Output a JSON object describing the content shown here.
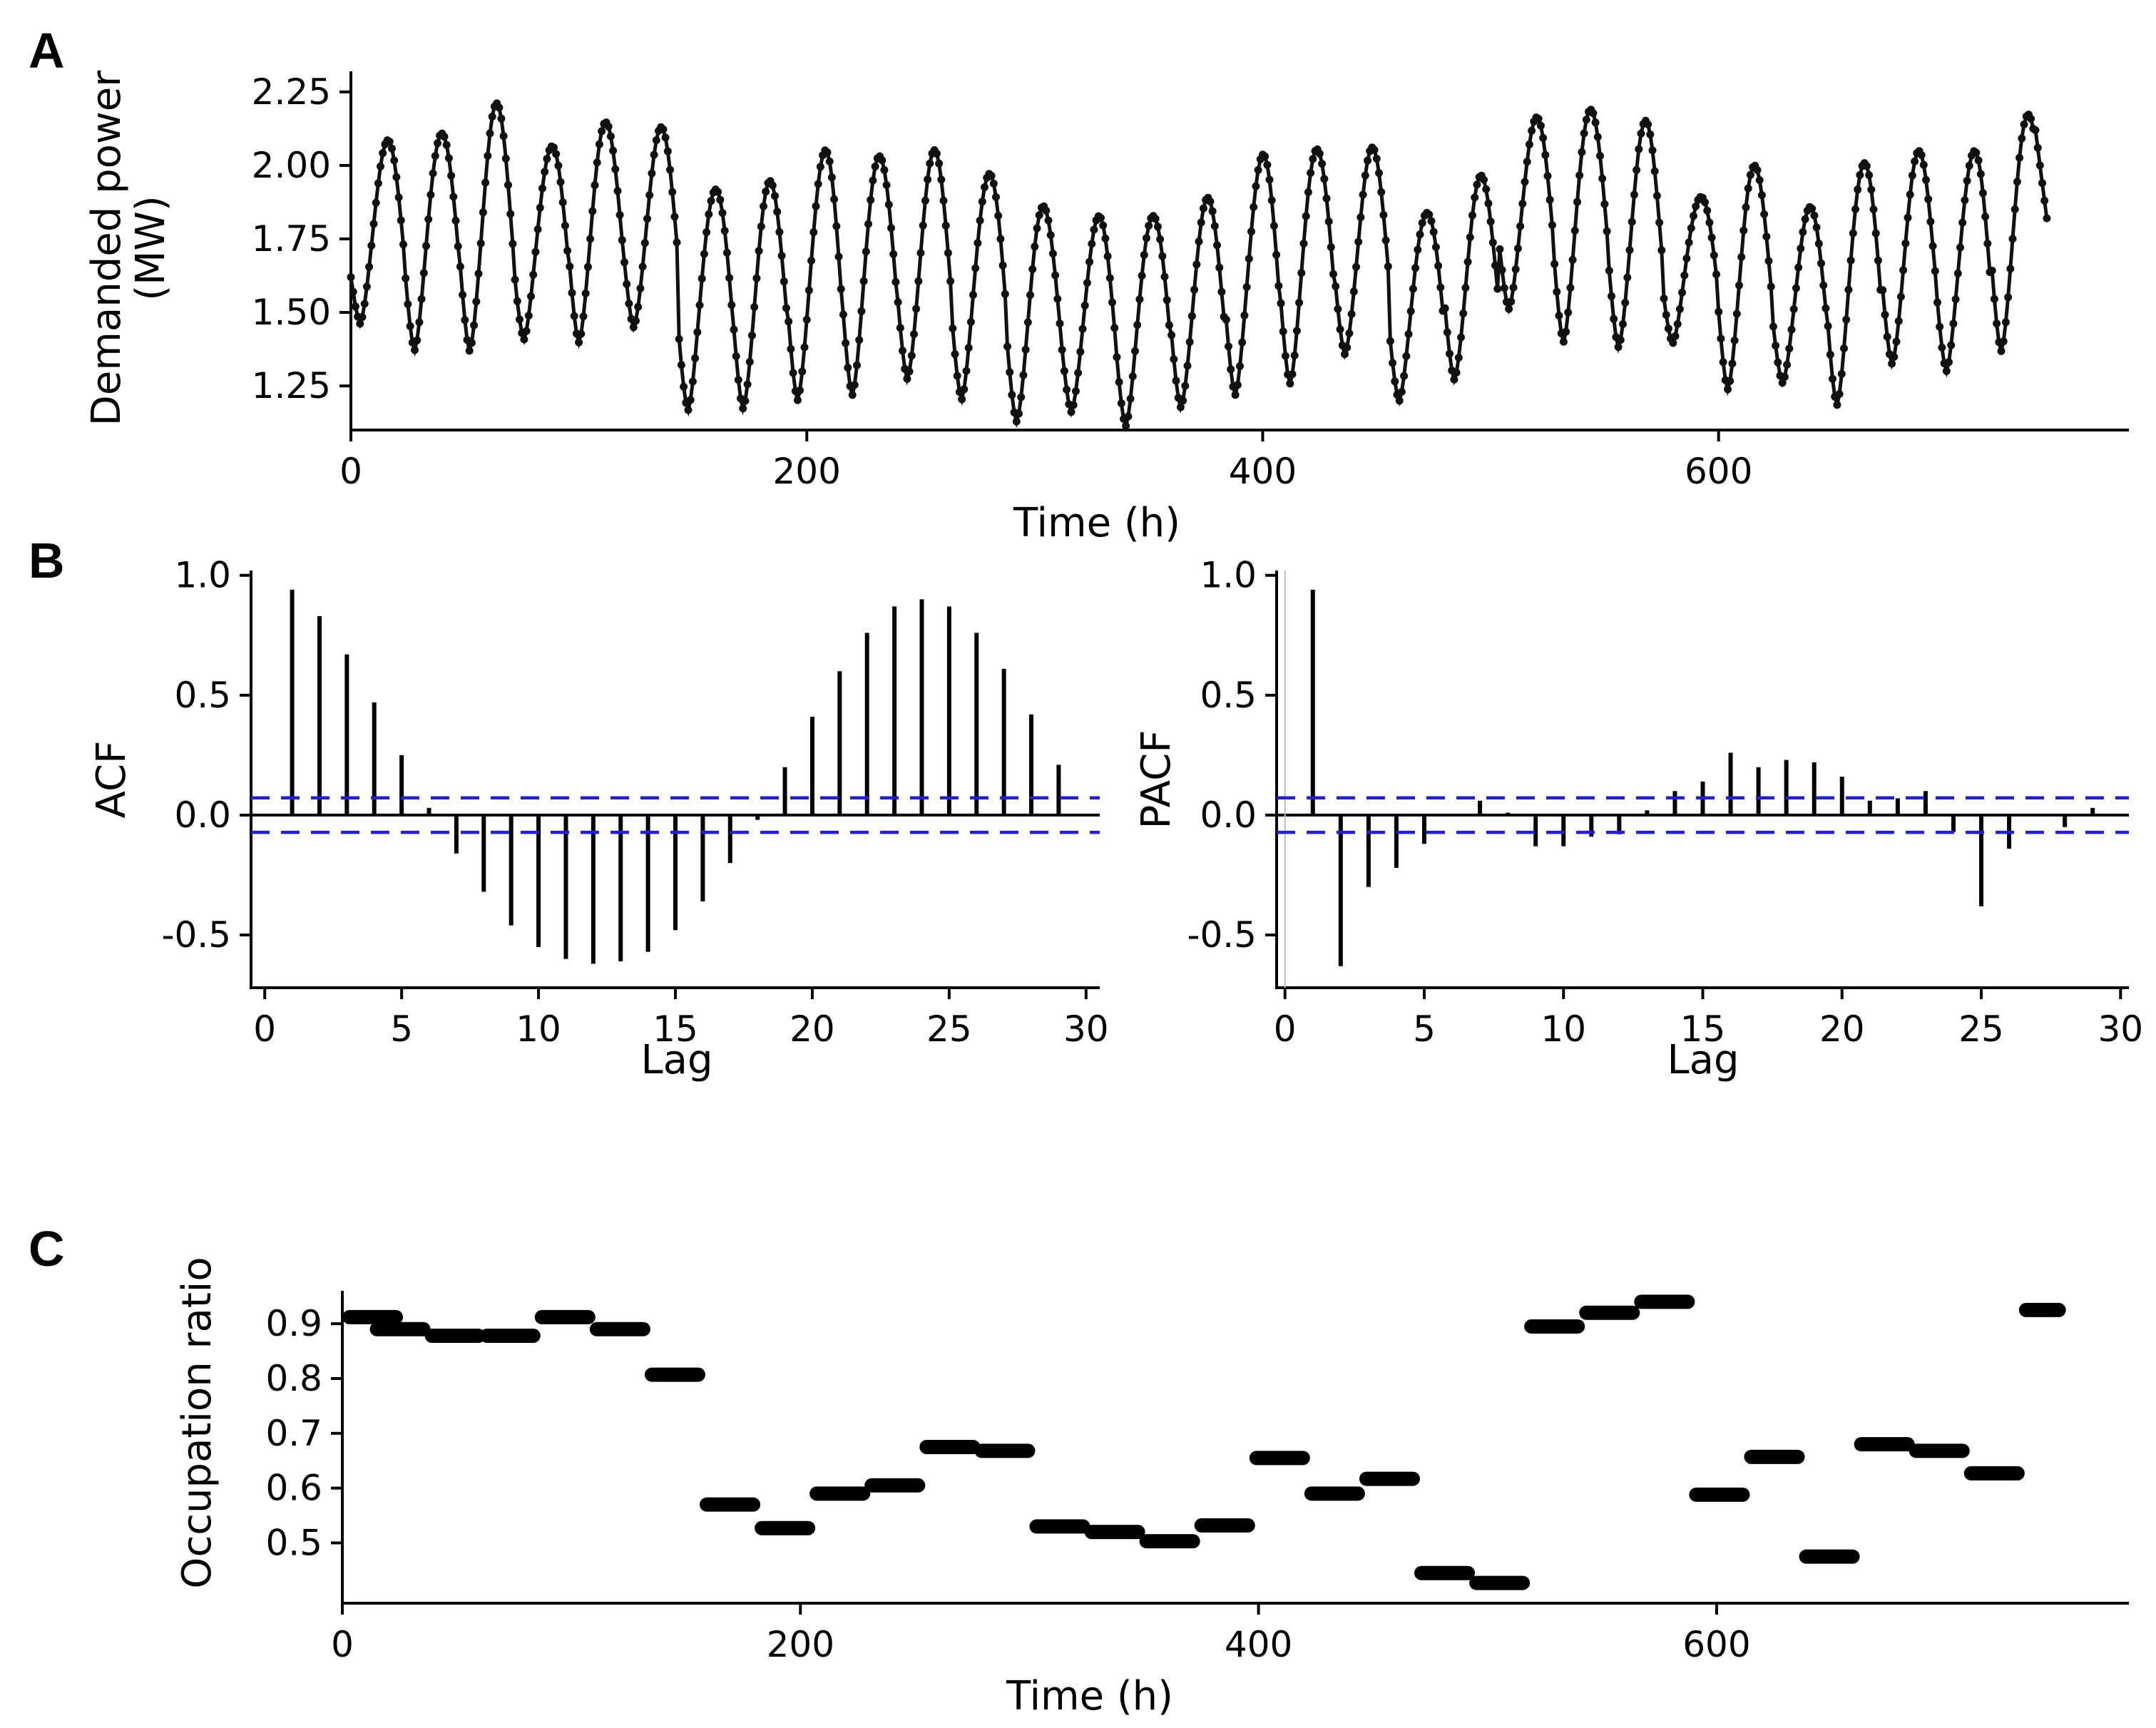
{
  "panels": {
    "a": "A",
    "b": "B",
    "c": "C"
  },
  "chart_data": [
    {
      "id": "A",
      "type": "line",
      "title": "",
      "xlabel": "Time (h)",
      "ylabel_lines": [
        "Demanded power",
        "(MW)"
      ],
      "xlim": [
        0,
        780
      ],
      "ylim": [
        1.1,
        2.32
      ],
      "xticks": [
        0,
        200,
        400,
        600
      ],
      "xtick_labels": [
        "0",
        "200",
        "400",
        "600"
      ],
      "yticks": [
        1.25,
        1.5,
        1.75,
        2.0,
        2.25
      ],
      "ytick_labels": [
        "1.25",
        "1.50",
        "1.75",
        "2.00",
        "2.25"
      ],
      "series_peaks": [
        2.08,
        2.12,
        2.2,
        2.07,
        2.15,
        2.12,
        1.93,
        1.94,
        2.05,
        2.04,
        2.04,
        1.98,
        1.86,
        1.82,
        1.84,
        1.88,
        2.04,
        2.06,
        2.05,
        1.85,
        1.96,
        2.16,
        2.2,
        2.14,
        1.9,
        2.0,
        1.85,
        2.02,
        2.04,
        2.05,
        2.18
      ],
      "series_troughs": [
        1.45,
        1.38,
        1.37,
        1.4,
        1.41,
        1.44,
        1.17,
        1.18,
        1.19,
        1.23,
        1.27,
        1.2,
        1.14,
        1.15,
        1.12,
        1.18,
        1.21,
        1.27,
        1.35,
        1.2,
        1.28,
        1.5,
        1.41,
        1.38,
        1.39,
        1.25,
        1.25,
        1.19,
        1.33,
        1.29,
        1.38
      ],
      "series_end_value": 1.82,
      "period_h": 24,
      "n_points": 745
    },
    {
      "id": "ACF",
      "type": "bar",
      "xlabel": "Lag",
      "ylabel": "ACF",
      "xlim": [
        -0.5,
        30.5
      ],
      "ylim": [
        -0.72,
        1.02
      ],
      "xticks": [
        0,
        5,
        10,
        15,
        20,
        25,
        30
      ],
      "xtick_labels": [
        "0",
        "5",
        "10",
        "15",
        "20",
        "25",
        "30"
      ],
      "yticks": [
        -0.5,
        0.0,
        0.5,
        1.0
      ],
      "ytick_labels": [
        "-0.5",
        "0.0",
        "0.5",
        "1.0"
      ],
      "confidence_bound": 0.072,
      "lags": [
        1,
        2,
        3,
        4,
        5,
        6,
        7,
        8,
        9,
        10,
        11,
        12,
        13,
        14,
        15,
        16,
        17,
        18,
        19,
        20,
        21,
        22,
        23,
        24,
        25,
        26,
        27,
        28,
        29
      ],
      "values": [
        0.94,
        0.83,
        0.67,
        0.47,
        0.25,
        0.03,
        -0.16,
        -0.32,
        -0.46,
        -0.55,
        -0.6,
        -0.62,
        -0.61,
        -0.57,
        -0.48,
        -0.36,
        -0.2,
        -0.02,
        0.2,
        0.41,
        0.6,
        0.76,
        0.87,
        0.9,
        0.87,
        0.76,
        0.61,
        0.42,
        0.21
      ]
    },
    {
      "id": "PACF",
      "type": "bar",
      "xlabel": "Lag",
      "ylabel": "PACF",
      "xlim": [
        -0.3,
        30.3
      ],
      "ylim": [
        -0.72,
        1.02
      ],
      "xticks": [
        0,
        5,
        10,
        15,
        20,
        25,
        30
      ],
      "xtick_labels": [
        "0",
        "5",
        "10",
        "15",
        "20",
        "25",
        "30"
      ],
      "yticks": [
        -0.5,
        0.0,
        0.5,
        1.0
      ],
      "ytick_labels": [
        "-0.5",
        "0.0",
        "0.5",
        "1.0"
      ],
      "confidence_bound": 0.072,
      "lags": [
        1,
        2,
        3,
        4,
        5,
        6,
        7,
        8,
        9,
        10,
        11,
        12,
        13,
        14,
        15,
        16,
        17,
        18,
        19,
        20,
        21,
        22,
        23,
        24,
        25,
        26,
        27,
        28,
        29
      ],
      "values": [
        0.94,
        -0.63,
        -0.3,
        -0.22,
        -0.12,
        0.0,
        0.06,
        0.01,
        -0.13,
        -0.13,
        -0.09,
        -0.08,
        0.02,
        0.1,
        0.14,
        0.26,
        0.2,
        0.23,
        0.22,
        0.16,
        0.06,
        0.07,
        0.1,
        -0.07,
        -0.38,
        -0.14,
        0.0,
        -0.05,
        0.03
      ]
    },
    {
      "id": "C",
      "type": "scatter",
      "xlabel": "Time (h)",
      "ylabel": "Occupation ratio",
      "xlim": [
        0,
        780
      ],
      "ylim": [
        0.39,
        0.96
      ],
      "xticks": [
        0,
        200,
        400,
        600
      ],
      "xtick_labels": [
        "0",
        "200",
        "400",
        "600"
      ],
      "yticks": [
        0.5,
        0.6,
        0.7,
        0.8,
        0.9
      ],
      "ytick_labels": [
        "0.5",
        "0.6",
        "0.7",
        "0.8",
        "0.9"
      ],
      "segments": [
        {
          "x_start": 0,
          "x_end": 24,
          "value": 0.912
        },
        {
          "x_start": 12,
          "x_end": 36,
          "value": 0.89
        },
        {
          "x_start": 36,
          "x_end": 60,
          "value": 0.878
        },
        {
          "x_start": 60,
          "x_end": 84,
          "value": 0.878
        },
        {
          "x_start": 84,
          "x_end": 108,
          "value": 0.912
        },
        {
          "x_start": 108,
          "x_end": 132,
          "value": 0.89
        },
        {
          "x_start": 132,
          "x_end": 156,
          "value": 0.807
        },
        {
          "x_start": 156,
          "x_end": 180,
          "value": 0.57
        },
        {
          "x_start": 180,
          "x_end": 204,
          "value": 0.527
        },
        {
          "x_start": 204,
          "x_end": 228,
          "value": 0.59
        },
        {
          "x_start": 228,
          "x_end": 252,
          "value": 0.605
        },
        {
          "x_start": 252,
          "x_end": 276,
          "value": 0.675
        },
        {
          "x_start": 276,
          "x_end": 300,
          "value": 0.668
        },
        {
          "x_start": 300,
          "x_end": 324,
          "value": 0.53
        },
        {
          "x_start": 324,
          "x_end": 348,
          "value": 0.52
        },
        {
          "x_start": 348,
          "x_end": 372,
          "value": 0.503
        },
        {
          "x_start": 372,
          "x_end": 396,
          "value": 0.532
        },
        {
          "x_start": 396,
          "x_end": 420,
          "value": 0.655
        },
        {
          "x_start": 420,
          "x_end": 444,
          "value": 0.59
        },
        {
          "x_start": 444,
          "x_end": 468,
          "value": 0.617
        },
        {
          "x_start": 468,
          "x_end": 492,
          "value": 0.445
        },
        {
          "x_start": 492,
          "x_end": 516,
          "value": 0.427
        },
        {
          "x_start": 516,
          "x_end": 540,
          "value": 0.895
        },
        {
          "x_start": 540,
          "x_end": 564,
          "value": 0.92
        },
        {
          "x_start": 564,
          "x_end": 588,
          "value": 0.94
        },
        {
          "x_start": 588,
          "x_end": 612,
          "value": 0.588
        },
        {
          "x_start": 612,
          "x_end": 636,
          "value": 0.657
        },
        {
          "x_start": 636,
          "x_end": 660,
          "value": 0.475
        },
        {
          "x_start": 660,
          "x_end": 684,
          "value": 0.68
        },
        {
          "x_start": 684,
          "x_end": 708,
          "value": 0.668
        },
        {
          "x_start": 708,
          "x_end": 732,
          "value": 0.627
        },
        {
          "x_start": 732,
          "x_end": 750,
          "value": 0.925
        }
      ]
    }
  ]
}
